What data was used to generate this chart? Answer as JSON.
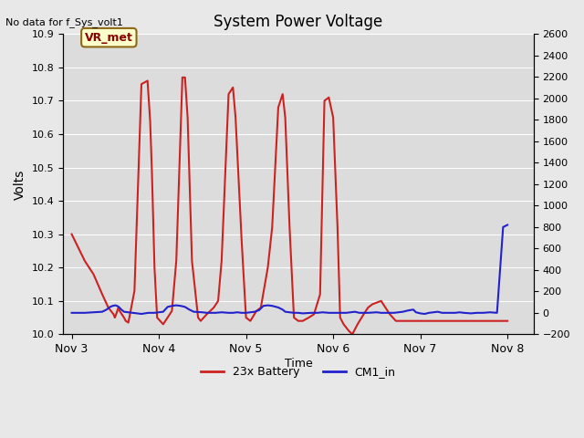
{
  "title": "System Power Voltage",
  "top_left_text": "No data for f_Sys_volt1",
  "xlabel": "Time",
  "ylabel_left": "Volts",
  "ylabel_right": "",
  "ylim_left": [
    10.0,
    10.9
  ],
  "ylim_right": [
    -200,
    2600
  ],
  "yticks_left": [
    10.0,
    10.1,
    10.2,
    10.3,
    10.4,
    10.5,
    10.6,
    10.7,
    10.8,
    10.9
  ],
  "yticks_right": [
    -200,
    0,
    200,
    400,
    600,
    800,
    1000,
    1200,
    1400,
    1600,
    1800,
    2000,
    2200,
    2400,
    2600
  ],
  "xtick_labels": [
    "Nov 3",
    "Nov 4",
    "Nov 5",
    "Nov 6",
    "Nov 7",
    "Nov 8"
  ],
  "annotation_text": "VR_met",
  "annotation_color": "#8B0000",
  "annotation_bg": "#FFFFCC",
  "annotation_border": "#8B6914",
  "bg_color": "#E8E8E8",
  "plot_bg_color": "#F0F0F0",
  "red_line_color": "#CC2222",
  "blue_line_color": "#2222CC",
  "legend_labels": [
    "23x Battery",
    "CM1_in"
  ],
  "red_x": [
    0,
    0.15,
    0.25,
    0.35,
    0.42,
    0.48,
    0.495,
    0.51,
    0.535,
    0.55,
    0.6,
    0.62,
    0.65,
    0.72,
    0.8,
    0.87,
    0.9,
    0.92,
    0.95,
    0.98,
    1.05,
    1.1,
    1.15,
    1.2,
    1.27,
    1.3,
    1.33,
    1.38,
    1.45,
    1.48,
    1.55,
    1.63,
    1.68,
    1.72,
    1.8,
    1.85,
    1.88,
    1.95,
    2.0,
    2.05,
    2.12,
    2.17,
    2.25,
    2.3,
    2.37,
    2.42,
    2.45,
    2.5,
    2.55,
    2.6,
    2.65,
    2.72,
    2.78,
    2.85,
    2.9,
    2.95,
    3.0,
    3.05,
    3.08,
    3.12,
    3.15,
    3.18,
    3.22,
    3.28,
    3.35,
    3.4,
    3.45,
    3.55,
    3.65,
    3.72,
    3.8,
    3.88,
    3.95,
    4.02,
    4.08,
    4.15,
    4.22,
    4.27,
    4.3,
    4.35,
    4.4,
    4.47,
    4.52,
    4.55,
    4.6,
    4.65,
    4.72,
    4.78,
    4.85,
    4.9,
    4.93,
    4.97,
    5.0
  ],
  "red_y": [
    10.3,
    10.22,
    10.18,
    10.12,
    10.08,
    10.06,
    10.05,
    10.06,
    10.08,
    10.07,
    10.05,
    10.04,
    10.035,
    10.13,
    10.75,
    10.76,
    10.64,
    10.49,
    10.2,
    10.05,
    10.03,
    10.05,
    10.07,
    10.22,
    10.77,
    10.77,
    10.65,
    10.22,
    10.05,
    10.04,
    10.06,
    10.08,
    10.1,
    10.22,
    10.72,
    10.74,
    10.65,
    10.28,
    10.05,
    10.04,
    10.07,
    10.08,
    10.2,
    10.32,
    10.68,
    10.72,
    10.65,
    10.32,
    10.05,
    10.04,
    10.04,
    10.05,
    10.06,
    10.12,
    10.7,
    10.71,
    10.65,
    10.32,
    10.05,
    10.03,
    10.02,
    10.01,
    10.0,
    10.03,
    10.06,
    10.08,
    10.09,
    10.1,
    10.06,
    10.04,
    10.04,
    10.04,
    10.04,
    10.04,
    10.04,
    10.04,
    10.04,
    10.04,
    10.04,
    10.04,
    10.04,
    10.04,
    10.04,
    10.04,
    10.04,
    10.04,
    10.04,
    10.04,
    10.04,
    10.04,
    10.04,
    10.04,
    10.04
  ],
  "blue_x": [
    0,
    0.15,
    0.25,
    0.35,
    0.4,
    0.44,
    0.47,
    0.5,
    0.52,
    0.54,
    0.57,
    0.6,
    0.65,
    0.7,
    0.75,
    0.8,
    0.88,
    0.95,
    1.0,
    1.05,
    1.1,
    1.15,
    1.2,
    1.25,
    1.3,
    1.35,
    1.4,
    1.5,
    1.55,
    1.65,
    1.72,
    1.8,
    1.85,
    1.9,
    1.95,
    2.0,
    2.05,
    2.1,
    2.15,
    2.2,
    2.25,
    2.3,
    2.37,
    2.42,
    2.45,
    2.5,
    2.55,
    2.6,
    2.65,
    2.75,
    2.82,
    2.88,
    2.95,
    3.05,
    3.1,
    3.15,
    3.2,
    3.25,
    3.3,
    3.35,
    3.4,
    3.5,
    3.55,
    3.6,
    3.65,
    3.7,
    3.75,
    3.8,
    3.85,
    3.88,
    3.92,
    3.95,
    4.0,
    4.05,
    4.1,
    4.15,
    4.2,
    4.25,
    4.3,
    4.35,
    4.4,
    4.45,
    4.5,
    4.58,
    4.65,
    4.72,
    4.8,
    4.88,
    4.95,
    5.0
  ],
  "blue_y_raw": [
    0,
    0,
    5,
    10,
    30,
    55,
    65,
    70,
    65,
    55,
    30,
    10,
    5,
    0,
    -5,
    -10,
    0,
    0,
    5,
    10,
    55,
    65,
    70,
    65,
    55,
    30,
    10,
    5,
    0,
    0,
    5,
    0,
    0,
    5,
    0,
    0,
    5,
    10,
    25,
    65,
    70,
    65,
    50,
    30,
    10,
    5,
    0,
    0,
    -5,
    0,
    0,
    5,
    0,
    0,
    0,
    0,
    5,
    10,
    0,
    0,
    0,
    5,
    0,
    0,
    0,
    0,
    5,
    10,
    20,
    25,
    30,
    5,
    -5,
    -10,
    0,
    5,
    10,
    0,
    0,
    0,
    0,
    5,
    0,
    -5,
    0,
    0,
    5,
    0,
    800,
    820
  ]
}
